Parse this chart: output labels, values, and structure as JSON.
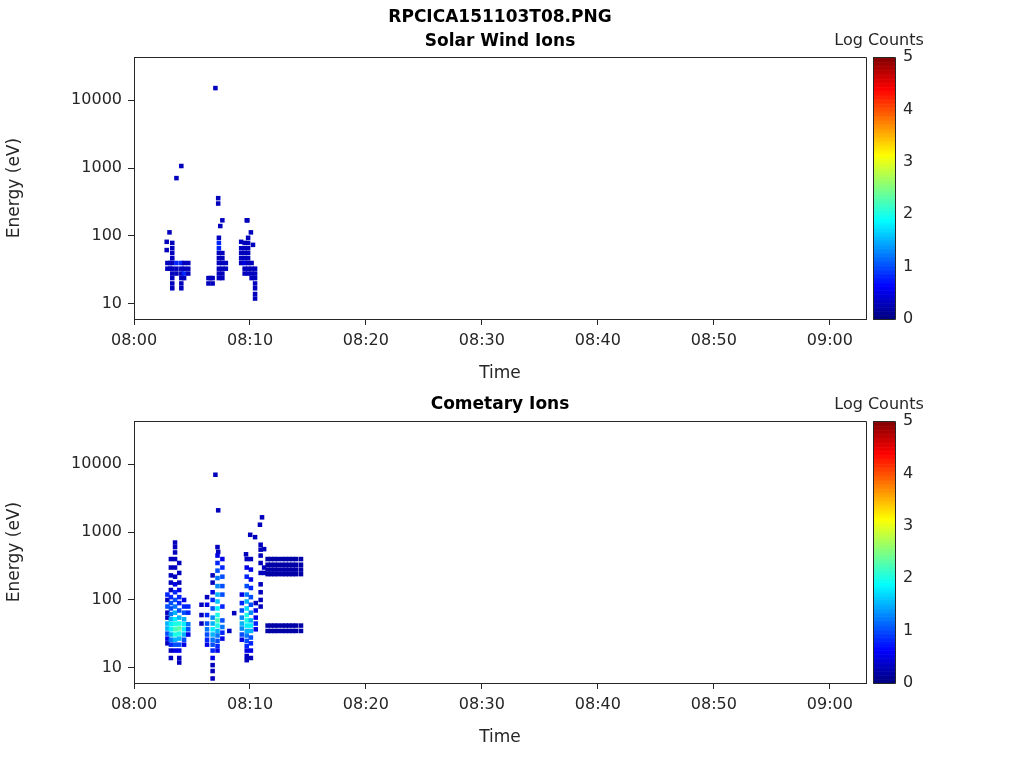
{
  "chart_data": [
    {
      "type": "scatter",
      "title": "RPCICA151103T08.PNG",
      "subtitle": "Solar Wind Ions",
      "xlabel": "Time",
      "ylabel": "Energy (eV)",
      "clabel": "Log Counts",
      "clim": [
        0,
        5
      ],
      "cticks": [
        0,
        1,
        2,
        3,
        4,
        5
      ],
      "log": "y",
      "grid": false,
      "legend": false,
      "marker": "square",
      "xlim": [
        8,
        9.052
      ],
      "xticks": [
        {
          "value": 8,
          "label": "08:00"
        },
        {
          "value": 8.1667,
          "label": "08:10"
        },
        {
          "value": 8.3333,
          "label": "08:20"
        },
        {
          "value": 8.5,
          "label": "08:30"
        },
        {
          "value": 8.6667,
          "label": "08:40"
        },
        {
          "value": 8.8333,
          "label": "08:50"
        },
        {
          "value": 9,
          "label": "09:00"
        }
      ],
      "ylim": [
        6,
        43000
      ],
      "yticks": [
        10,
        100,
        1000,
        10000
      ],
      "series": [
        {
          "x": [
            8.117,
            8.068,
            8.061,
            8.121,
            8.121,
            8.127,
            8.124,
            8.162,
            8.163,
            8.168,
            8.154,
            8.171,
            8.051,
            8.047,
            8.047,
            8.048,
            8.048,
            8.052,
            8.052,
            8.055,
            8.055,
            8.055,
            8.055,
            8.055,
            8.055,
            8.055,
            8.055,
            8.055,
            8.055,
            8.061,
            8.061,
            8.061,
            8.068,
            8.068,
            8.068,
            8.068,
            8.068,
            8.068,
            8.072,
            8.072,
            8.072,
            8.072,
            8.078,
            8.078,
            8.078,
            8.107,
            8.107,
            8.11,
            8.113,
            8.113,
            8.122,
            8.122,
            8.122,
            8.122,
            8.122,
            8.122,
            8.122,
            8.122,
            8.122,
            8.127,
            8.127,
            8.127,
            8.127,
            8.127,
            8.127,
            8.132,
            8.132,
            8.154,
            8.154,
            8.154,
            8.154,
            8.159,
            8.159,
            8.159,
            8.159,
            8.159,
            8.159,
            8.159,
            8.164,
            8.164,
            8.164,
            8.164,
            8.164,
            8.164,
            8.164,
            8.164,
            8.169,
            8.169,
            8.169,
            8.169,
            8.174,
            8.174,
            8.174,
            8.174,
            8.174,
            8.174,
            8.174
          ],
          "values": [
            15000,
            1070,
            710,
            360,
            300,
            170,
            140,
            170,
            170,
            113,
            82,
            74,
            113,
            82,
            62,
            40,
            33,
            40,
            33,
            79,
            66,
            56,
            47,
            40,
            33,
            28,
            24,
            20,
            17,
            40,
            33,
            28,
            40,
            33,
            28,
            24,
            20,
            17,
            40,
            33,
            28,
            24,
            40,
            33,
            28,
            24,
            20,
            24,
            24,
            20,
            94,
            79,
            66,
            56,
            47,
            40,
            33,
            28,
            24,
            56,
            47,
            40,
            33,
            28,
            24,
            40,
            33,
            66,
            56,
            47,
            40,
            79,
            66,
            56,
            47,
            40,
            33,
            28,
            94,
            79,
            66,
            56,
            47,
            40,
            33,
            28,
            40,
            33,
            28,
            24,
            33,
            28,
            24,
            20,
            17,
            14,
            12
          ],
          "cvalues": [
            0.3,
            0.3,
            0.3,
            0.3,
            0.3,
            0.3,
            0.3,
            0.3,
            0.3,
            0.3,
            0.3,
            0.3,
            0.3,
            0.3,
            0.3,
            0.3,
            0.3,
            0.3,
            0.3,
            0.3,
            0.3,
            0.3,
            0.3,
            0.3,
            0.3,
            0.3,
            0.3,
            0.3,
            0.3,
            0.8,
            0.3,
            0.3,
            0.8,
            0.3,
            0.3,
            0.3,
            0.3,
            0.3,
            0.3,
            0.3,
            0.8,
            0.3,
            0.3,
            0.3,
            0.3,
            0.3,
            0.3,
            0.3,
            0.3,
            0.3,
            0.3,
            0.8,
            0.8,
            0.3,
            0.3,
            0.3,
            0.3,
            0.3,
            0.3,
            0.3,
            0.3,
            0.3,
            0.3,
            0.3,
            0.3,
            0.3,
            0.3,
            0.3,
            0.3,
            0.3,
            0.3,
            0.3,
            0.3,
            0.3,
            0.3,
            0.5,
            0.3,
            0.3,
            0.3,
            0.3,
            0.3,
            0.3,
            0.3,
            0.3,
            0.3,
            0.3,
            0.3,
            0.3,
            0.3,
            0.3,
            0.3,
            0.3,
            0.3,
            0.3,
            0.3,
            0.3,
            0.3
          ]
        }
      ]
    },
    {
      "type": "scatter",
      "title": "Cometary Ions",
      "xlabel": "Time",
      "ylabel": "Energy (eV)",
      "clabel": "Log Counts",
      "clim": [
        0,
        5
      ],
      "cticks": [
        0,
        1,
        2,
        3,
        4,
        5
      ],
      "log": "y",
      "grid": false,
      "legend": false,
      "marker": "square",
      "xlim": [
        8,
        9.052
      ],
      "xticks": [
        {
          "value": 8,
          "label": "08:00"
        },
        {
          "value": 8.1667,
          "label": "08:10"
        },
        {
          "value": 8.3333,
          "label": "08:20"
        },
        {
          "value": 8.5,
          "label": "08:30"
        },
        {
          "value": 8.6667,
          "label": "08:40"
        },
        {
          "value": 8.8333,
          "label": "08:50"
        },
        {
          "value": 9,
          "label": "09:00"
        }
      ],
      "ylim": [
        6,
        43000
      ],
      "yticks": [
        10,
        100,
        1000,
        10000
      ],
      "series": [
        {
          "x": [
            8.117,
            8.121,
            8.184,
            8.181,
            8.167,
            8.174,
            8.121,
            8.161,
            8.187,
            8.144,
            8.137,
            8.048,
            8.048,
            8.048,
            8.048,
            8.048,
            8.048,
            8.048,
            8.048,
            8.048,
            8.048,
            8.053,
            8.053,
            8.053,
            8.053,
            8.053,
            8.053,
            8.053,
            8.053,
            8.053,
            8.053,
            8.053,
            8.053,
            8.053,
            8.053,
            8.053,
            8.053,
            8.053,
            8.059,
            8.059,
            8.059,
            8.059,
            8.059,
            8.059,
            8.059,
            8.059,
            8.059,
            8.059,
            8.059,
            8.059,
            8.059,
            8.059,
            8.059,
            8.059,
            8.059,
            8.059,
            8.065,
            8.065,
            8.065,
            8.065,
            8.065,
            8.065,
            8.065,
            8.065,
            8.065,
            8.065,
            8.065,
            8.065,
            8.065,
            8.065,
            8.065,
            8.065,
            8.072,
            8.072,
            8.072,
            8.072,
            8.072,
            8.072,
            8.072,
            8.072,
            8.072,
            8.078,
            8.078,
            8.078,
            8.078,
            8.078,
            8.097,
            8.097,
            8.097,
            8.105,
            8.105,
            8.105,
            8.105,
            8.105,
            8.105,
            8.105,
            8.105,
            8.113,
            8.113,
            8.113,
            8.113,
            8.113,
            8.113,
            8.113,
            8.113,
            8.113,
            8.113,
            8.113,
            8.113,
            8.113,
            8.113,
            8.113,
            8.113,
            8.12,
            8.12,
            8.12,
            8.12,
            8.12,
            8.12,
            8.12,
            8.12,
            8.12,
            8.12,
            8.12,
            8.12,
            8.12,
            8.12,
            8.12,
            8.12,
            8.12,
            8.127,
            8.127,
            8.127,
            8.127,
            8.127,
            8.127,
            8.127,
            8.127,
            8.127,
            8.127,
            8.155,
            8.155,
            8.155,
            8.155,
            8.155,
            8.155,
            8.155,
            8.155,
            8.162,
            8.162,
            8.162,
            8.162,
            8.162,
            8.162,
            8.162,
            8.162,
            8.162,
            8.162,
            8.162,
            8.162,
            8.162,
            8.162,
            8.162,
            8.162,
            8.162,
            8.168,
            8.168,
            8.168,
            8.168,
            8.168,
            8.168,
            8.168,
            8.168,
            8.168,
            8.168,
            8.168,
            8.168,
            8.168,
            8.168,
            8.175,
            8.175,
            8.175,
            8.175,
            8.175,
            8.182,
            8.182,
            8.182,
            8.182,
            8.182,
            8.182,
            8.182,
            8.182,
            8.182,
            8.187,
            8.187,
            8.192,
            8.192,
            8.192,
            8.192,
            8.192,
            8.192,
            8.197,
            8.197,
            8.197,
            8.197,
            8.197,
            8.197,
            8.202,
            8.202,
            8.202,
            8.202,
            8.202,
            8.202,
            8.207,
            8.207,
            8.207,
            8.207,
            8.207,
            8.207,
            8.213,
            8.213,
            8.213,
            8.213,
            8.213,
            8.213,
            8.218,
            8.218,
            8.218,
            8.218,
            8.218,
            8.218,
            8.223,
            8.223,
            8.223,
            8.223,
            8.223,
            8.223,
            8.228,
            8.228,
            8.228,
            8.228,
            8.228,
            8.228,
            8.233,
            8.233,
            8.233,
            8.233,
            8.233,
            8.233,
            8.24,
            8.24,
            8.24,
            8.24,
            8.24,
            8.24
          ],
          "values": [
            6960,
            2085,
            1645,
            1280,
            910,
            840,
            510,
            470,
            560,
            64,
            35,
            120,
            100,
            80,
            65,
            55,
            45,
            38,
            32,
            27,
            23,
            400,
            300,
            230,
            180,
            140,
            110,
            90,
            75,
            62,
            52,
            44,
            37,
            31,
            26,
            22,
            18,
            14,
            700,
            600,
            500,
            400,
            300,
            220,
            170,
            130,
            100,
            80,
            65,
            52,
            44,
            37,
            31,
            26,
            22,
            18,
            350,
            250,
            180,
            140,
            110,
            90,
            70,
            55,
            45,
            38,
            32,
            27,
            22,
            18,
            14,
            12,
            100,
            80,
            65,
            52,
            44,
            37,
            31,
            26,
            22,
            80,
            65,
            44,
            37,
            31,
            85,
            60,
            45,
            110,
            85,
            60,
            45,
            37,
            31,
            26,
            22,
            230,
            180,
            130,
            100,
            75,
            55,
            45,
            37,
            31,
            26,
            22,
            18,
            14,
            11,
            9,
            7,
            600,
            450,
            350,
            270,
            210,
            160,
            120,
            95,
            75,
            60,
            50,
            42,
            35,
            30,
            25,
            21,
            18,
            400,
            300,
            220,
            160,
            120,
            80,
            50,
            40,
            33,
            27,
            120,
            90,
            70,
            55,
            45,
            38,
            31,
            26,
            400,
            300,
            220,
            160,
            120,
            95,
            75,
            60,
            50,
            42,
            35,
            30,
            25,
            21,
            18,
            15,
            13,
            400,
            280,
            200,
            150,
            110,
            85,
            65,
            50,
            42,
            35,
            28,
            23,
            18,
            14,
            90,
            70,
            55,
            45,
            37,
            650,
            550,
            450,
            350,
            250,
            170,
            130,
            100,
            80,
            300,
            250,
            400,
            330,
            280,
            240,
            42,
            35,
            400,
            330,
            280,
            240,
            42,
            35,
            400,
            330,
            280,
            240,
            42,
            35,
            400,
            330,
            280,
            240,
            42,
            35,
            400,
            330,
            280,
            240,
            42,
            35,
            400,
            330,
            280,
            240,
            42,
            35,
            400,
            330,
            280,
            240,
            42,
            35,
            400,
            330,
            280,
            240,
            42,
            35,
            400,
            330,
            280,
            240,
            42,
            35,
            400,
            330,
            280,
            240,
            42,
            35
          ],
          "cvalues": [
            0.3,
            0.3,
            0.3,
            0.3,
            0.3,
            0.3,
            0.3,
            0.3,
            0.3,
            0.3,
            0.3,
            0.8,
            0.3,
            1,
            0.3,
            0.3,
            1.5,
            1.5,
            1,
            0.5,
            0.3,
            0.3,
            0.3,
            0.3,
            0.3,
            0.3,
            0.8,
            1,
            1,
            1.2,
            1.5,
            1.8,
            1.8,
            1.5,
            1.2,
            0.8,
            0.3,
            0.3,
            0.3,
            0.3,
            0.3,
            0.3,
            0.3,
            0.3,
            0.5,
            0.8,
            1,
            1.2,
            1.5,
            1.8,
            2,
            2.2,
            2,
            1.5,
            1,
            0.5,
            0.3,
            0.3,
            0.3,
            0.5,
            0.8,
            0.8,
            1,
            1.5,
            2,
            2.3,
            2,
            1.5,
            1,
            0.5,
            0.3,
            0.3,
            0.5,
            0.8,
            1,
            1.5,
            1.8,
            1.8,
            1.5,
            1,
            0.5,
            0.8,
            0.8,
            1.2,
            1,
            0.5,
            0.3,
            0.3,
            0.3,
            0.3,
            0.5,
            0.8,
            1,
            1.2,
            1,
            0.8,
            0.5,
            0.3,
            0.3,
            0.5,
            0.8,
            1,
            1.3,
            1.5,
            1.8,
            1.5,
            1.2,
            1,
            0.8,
            0.5,
            0.3,
            0.3,
            0.3,
            0.3,
            0.5,
            0.8,
            1,
            1.2,
            1.3,
            1.5,
            1.6,
            1.8,
            2,
            2.2,
            2,
            1.5,
            1.2,
            1,
            0.8,
            0.5,
            0.5,
            0.8,
            1,
            1,
            1,
            0.8,
            1,
            1.2,
            0.8,
            0.5,
            0.5,
            0.8,
            1,
            1.3,
            1.5,
            1.3,
            1,
            0.5,
            0.3,
            0.5,
            0.8,
            1,
            1.2,
            1.5,
            1.7,
            2,
            2,
            1.8,
            1.5,
            1.2,
            1,
            0.8,
            0.5,
            0.3,
            0.3,
            0.3,
            0.5,
            0.5,
            0.8,
            1,
            1,
            1.3,
            1.5,
            1.8,
            1.5,
            1,
            0.8,
            0.5,
            0.3,
            0.3,
            0.5,
            0.5,
            0.8,
            0.5,
            0.3,
            0.3,
            0.3,
            0.3,
            0.3,
            0.3,
            0.3,
            0.3,
            0.3,
            0.3,
            0.3,
            0.2,
            0.2,
            0.2,
            0.2,
            0.2,
            0.2,
            0.2,
            0.2,
            0.2,
            0.2,
            0.2,
            0.2,
            0.2,
            0.2,
            0.2,
            0.2,
            0.2,
            0.2,
            0.2,
            0.2,
            0.2,
            0.2,
            0.2,
            0.2,
            0.2,
            0.2,
            0.2,
            0.2,
            0.2,
            0.2,
            0.2,
            0.2,
            0.2,
            0.2,
            0.2,
            0.2,
            0.2,
            0.2,
            0.2,
            0.2,
            0.2,
            0.2,
            0.2,
            0.2,
            0.2,
            0.2,
            0.2,
            0.2,
            0.2,
            0.2,
            0.2,
            0.2,
            0.2,
            0.2,
            0.2,
            0.2,
            0.2,
            0.2,
            0.2,
            0.2
          ]
        }
      ]
    }
  ]
}
